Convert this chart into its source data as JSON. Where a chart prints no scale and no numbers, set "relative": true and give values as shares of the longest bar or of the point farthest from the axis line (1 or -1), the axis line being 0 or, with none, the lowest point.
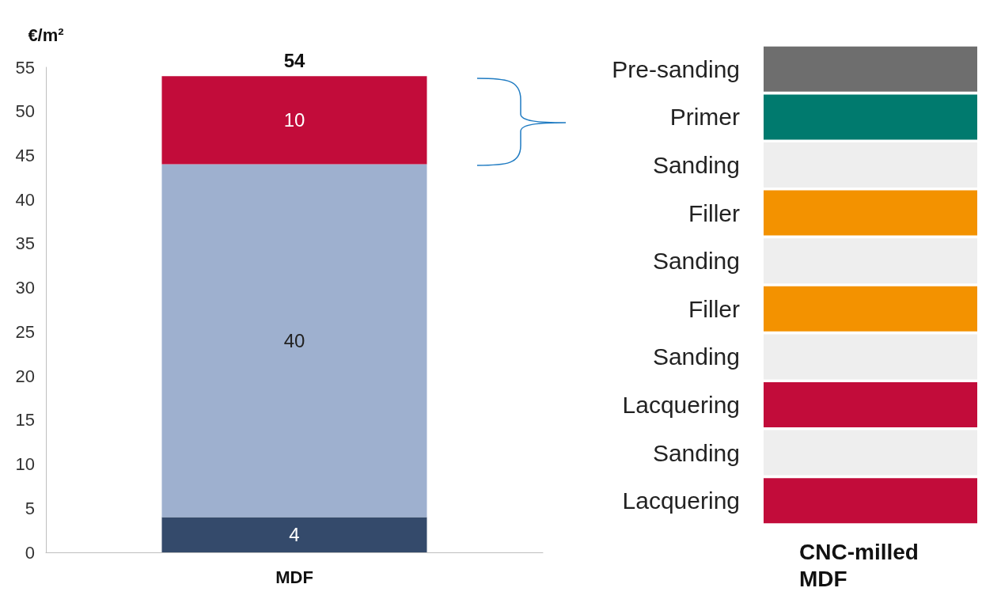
{
  "chart_data": [
    {
      "type": "bar",
      "ylabel": "€/m²",
      "categories": [
        "MDF"
      ],
      "stacked": true,
      "data_labels": true,
      "totals": [
        "54"
      ],
      "ylim": [
        0,
        55
      ],
      "yticks": [
        0,
        5,
        10,
        15,
        20,
        25,
        30,
        35,
        40,
        45,
        50,
        55
      ],
      "grid": false,
      "series": [
        {
          "color": "#344a6b",
          "values": [
            4
          ]
        },
        {
          "color": "#9eb0cf",
          "values": [
            40
          ]
        },
        {
          "color": "#c20c3a",
          "values": [
            10
          ]
        }
      ]
    },
    {
      "type": "bar",
      "orientation": "horizontal",
      "relative": true,
      "xlabel": "CNC-milled MDF",
      "categories": [
        "Pre-sanding",
        "Primer",
        "Sanding",
        "Filler",
        "Sanding",
        "Filler",
        "Sanding",
        "Lacquering",
        "Sanding",
        "Lacquering"
      ],
      "values": [
        1,
        1,
        1,
        1,
        1,
        1,
        1,
        1,
        1,
        1
      ],
      "colors": [
        "#6e6e6e",
        "#007a6e",
        "#eeeeee",
        "#f39200",
        "#eeeeee",
        "#f39200",
        "#eeeeee",
        "#c20c3a",
        "#eeeeee",
        "#c20c3a"
      ]
    }
  ]
}
